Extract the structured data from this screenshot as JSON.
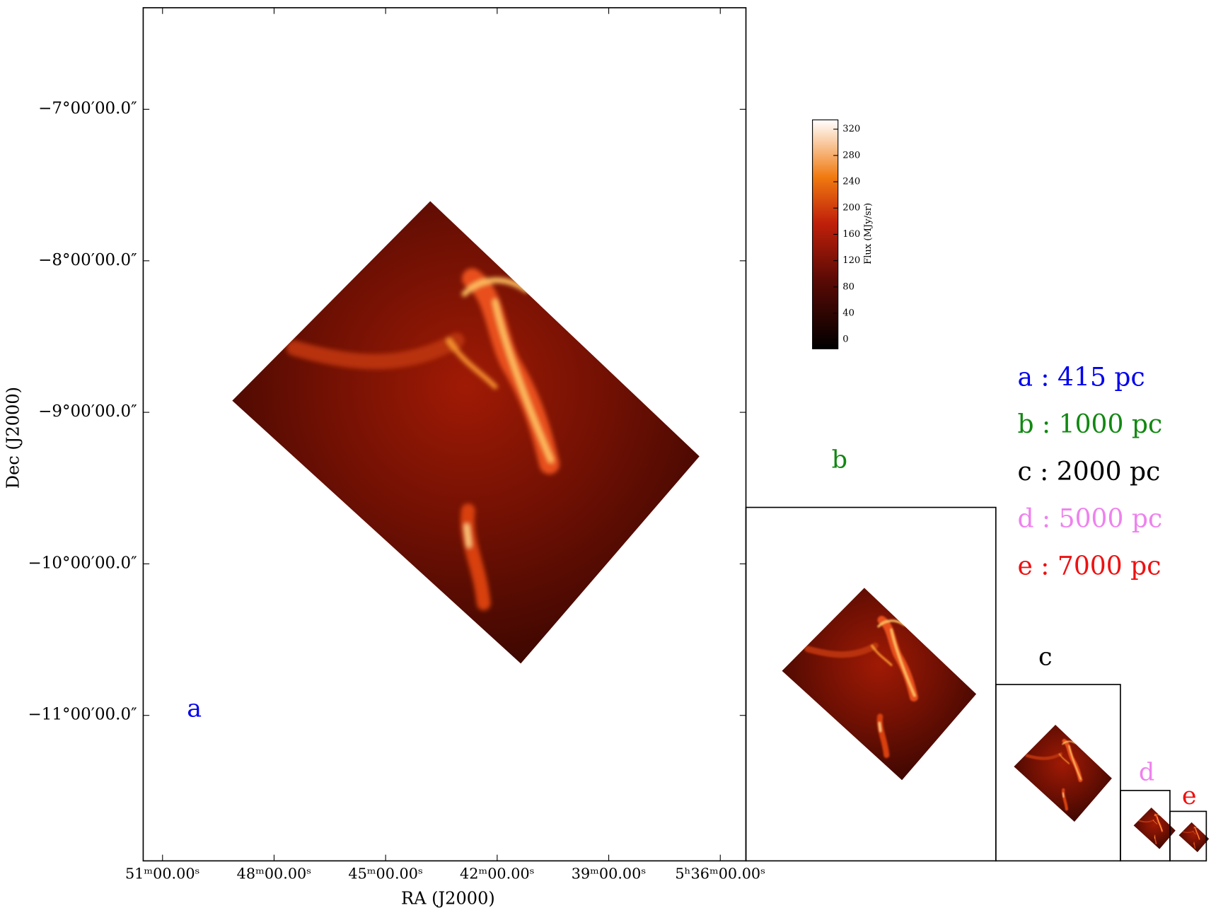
{
  "chart_data": {
    "type": "image",
    "xlabel": "RA (J2000)",
    "ylabel": "Dec (J2000)",
    "xlim": [
      51.52,
      35.31
    ],
    "ylim": [
      -11.96,
      -6.33
    ],
    "xticks": [
      {
        "value": 51,
        "label": "51ᵐ00.00ˢ"
      },
      {
        "value": 48,
        "label": "48ᵐ00.00ˢ"
      },
      {
        "value": 45,
        "label": "45ᵐ00.00ˢ"
      },
      {
        "value": 42,
        "label": "42ᵐ00.00ˢ"
      },
      {
        "value": 39,
        "label": "39ᵐ00.00ˢ"
      },
      {
        "value": 36,
        "label": "5ʰ36ᵐ00.00ˢ"
      }
    ],
    "yticks": [
      {
        "value": -7,
        "label": "−7°00′00.0″"
      },
      {
        "value": -8,
        "label": "−8°00′00.0″"
      },
      {
        "value": -9,
        "label": "−9°00′00.0″"
      },
      {
        "value": -10,
        "label": "−10°00′00.0″"
      },
      {
        "value": -11,
        "label": "−11°00′00.0″"
      }
    ],
    "colorbar": {
      "label": "Flux (MJy/sr)",
      "ylim": [
        -14.1,
        334.1
      ],
      "yticks": [
        0,
        40,
        80,
        120,
        160,
        200,
        240,
        280,
        320
      ]
    },
    "panels": [
      {
        "label": "a",
        "color": "#0000ee"
      },
      {
        "label": "b",
        "color": "#118811"
      },
      {
        "label": "c",
        "color": "#000000"
      },
      {
        "label": "d",
        "color": "#ee82ee"
      },
      {
        "label": "e",
        "color": "#ee1111"
      }
    ],
    "legend": [
      {
        "text": "a : 415 pc",
        "color": "#0000ee"
      },
      {
        "text": "b : 1000 pc",
        "color": "#118811"
      },
      {
        "text": "c : 2000 pc",
        "color": "#000000"
      },
      {
        "text": "d : 5000 pc",
        "color": "#ee82ee"
      },
      {
        "text": "e : 7000 pc",
        "color": "#ee1111"
      }
    ]
  }
}
